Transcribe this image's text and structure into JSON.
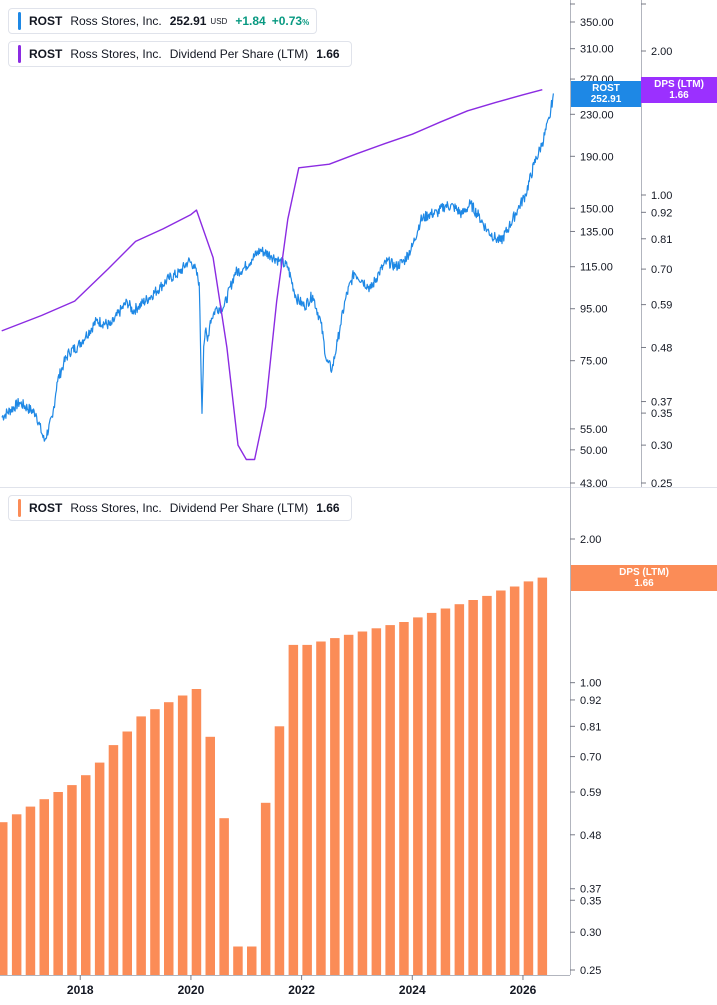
{
  "header": {
    "price_legend": {
      "symbol": "ROST",
      "name": "Ross Stores, Inc.",
      "value": "252.91",
      "currency": "USD",
      "change": "+1.84",
      "change_pct": "+0.73",
      "pct_sign": "%"
    },
    "dps_legend_top": {
      "symbol": "ROST",
      "name": "Ross Stores, Inc.",
      "metric": "Dividend Per Share (LTM)",
      "value": "1.66"
    },
    "dps_legend_bottom": {
      "symbol": "ROST",
      "name": "Ross Stores, Inc.",
      "metric": "Dividend Per Share (LTM)",
      "value": "1.66"
    }
  },
  "tags": {
    "price": {
      "line1": "ROST",
      "line2": "252.91"
    },
    "dps_top": {
      "line1": "DPS (LTM)",
      "line2": "1.66"
    },
    "dps_bottom": {
      "line1": "DPS (LTM)",
      "line2": "1.66"
    }
  },
  "colors": {
    "price_line": "#1e88e5",
    "dps_line": "#8b2be2",
    "bars": "#fb8c57",
    "gain": "#089981"
  },
  "chart_data": [
    {
      "type": "line",
      "scale": "log",
      "series": [
        {
          "name": "Ross Stores, Inc.",
          "axis": "left",
          "x": [
            2016.58,
            2016.9,
            2017.2,
            2017.35,
            2017.5,
            2017.58,
            2017.7,
            2017.8,
            2017.95,
            2018.1,
            2018.3,
            2018.55,
            2018.75,
            2018.85,
            2018.95,
            2019.05,
            2019.25,
            2019.45,
            2019.6,
            2019.8,
            2019.95,
            2020.05,
            2020.15,
            2020.2,
            2020.23,
            2020.26,
            2020.3,
            2020.35,
            2020.45,
            2020.6,
            2020.8,
            2020.95,
            2021.1,
            2021.25,
            2021.45,
            2021.6,
            2021.75,
            2021.9,
            2022.05,
            2022.2,
            2022.35,
            2022.45,
            2022.55,
            2022.65,
            2022.7,
            2022.8,
            2022.95,
            2023.1,
            2023.25,
            2023.4,
            2023.55,
            2023.7,
            2023.85,
            2024.0,
            2024.15,
            2024.3,
            2024.45,
            2024.6,
            2024.75,
            2024.9,
            2025.05,
            2025.2,
            2025.35,
            2025.5,
            2025.6,
            2025.75,
            2025.9,
            2026.05,
            2026.2,
            2026.35,
            2026.48,
            2026.55
          ],
          "values": [
            58,
            62,
            59,
            52,
            58,
            68,
            74,
            78,
            80,
            84,
            90,
            88,
            95,
            98,
            94,
            96,
            100,
            105,
            109,
            112,
            118,
            116,
            107,
            59,
            80,
            86,
            82,
            90,
            95,
            96,
            112,
            114,
            119,
            124,
            121,
            118,
            115,
            100,
            96,
            101,
            89,
            75,
            72,
            82,
            88,
            100,
            112,
            108,
            104,
            112,
            118,
            115,
            118,
            126,
            142,
            146,
            147,
            152,
            151,
            146,
            153,
            145,
            136,
            131,
            129,
            138,
            149,
            160,
            183,
            202,
            226,
            252.91
          ]
        },
        {
          "name": "Dividend Per Share (LTM)",
          "axis": "right",
          "x": [
            2016.58,
            2017.3,
            2017.9,
            2018.5,
            2019.0,
            2019.5,
            2020.0,
            2020.1,
            2020.4,
            2020.65,
            2020.85,
            2021.0,
            2021.15,
            2021.35,
            2021.55,
            2021.75,
            2021.95,
            2022.5,
            2023.0,
            2023.5,
            2024.0,
            2024.5,
            2025.0,
            2025.5,
            2026.0,
            2026.35
          ],
          "values": [
            0.52,
            0.56,
            0.6,
            0.7,
            0.8,
            0.85,
            0.91,
            0.93,
            0.74,
            0.48,
            0.3,
            0.28,
            0.28,
            0.36,
            0.6,
            0.89,
            1.14,
            1.16,
            1.22,
            1.28,
            1.34,
            1.42,
            1.5,
            1.56,
            1.62,
            1.66
          ]
        }
      ],
      "yaxis_left": {
        "ticks": [
          350,
          310,
          270,
          230,
          190,
          150,
          135,
          115,
          95,
          75,
          55,
          50,
          43
        ],
        "labels": [
          "350.00",
          "310.00",
          "270.00",
          "230.00",
          "190.00",
          "150.00",
          "135.00",
          "115.00",
          "95.00",
          "75.00",
          "55.00",
          "50.00",
          "43.00"
        ],
        "range": [
          43,
          410
        ]
      },
      "yaxis_right": {
        "ticks": [
          2.0,
          1.0,
          0.92,
          0.81,
          0.7,
          0.59,
          0.48,
          0.37,
          0.35,
          0.3,
          0.25
        ],
        "labels": [
          "2.00",
          "1.00",
          "0.92",
          "0.81",
          "0.70",
          "0.59",
          "0.48",
          "0.37",
          "0.35",
          "0.30",
          "0.25"
        ],
        "range": [
          0.25,
          2.4
        ]
      }
    },
    {
      "type": "bar",
      "scale": "log",
      "series": [
        {
          "name": "Dividend Per Share (LTM)",
          "x": [
            2016.6,
            2016.85,
            2017.1,
            2017.35,
            2017.6,
            2017.85,
            2018.1,
            2018.35,
            2018.6,
            2018.85,
            2019.1,
            2019.35,
            2019.6,
            2019.85,
            2020.1,
            2020.35,
            2020.6,
            2020.85,
            2021.1,
            2021.35,
            2021.6,
            2021.85,
            2022.1,
            2022.35,
            2022.6,
            2022.85,
            2023.1,
            2023.35,
            2023.6,
            2023.85,
            2024.1,
            2024.35,
            2024.6,
            2024.85,
            2025.1,
            2025.35,
            2025.6,
            2025.85,
            2026.1,
            2026.35
          ],
          "values": [
            0.51,
            0.53,
            0.55,
            0.57,
            0.59,
            0.61,
            0.64,
            0.68,
            0.74,
            0.79,
            0.85,
            0.88,
            0.91,
            0.94,
            0.97,
            0.77,
            0.52,
            0.28,
            0.28,
            0.56,
            0.81,
            1.2,
            1.2,
            1.22,
            1.24,
            1.26,
            1.28,
            1.3,
            1.32,
            1.34,
            1.37,
            1.4,
            1.43,
            1.46,
            1.49,
            1.52,
            1.56,
            1.59,
            1.63,
            1.66
          ]
        }
      ],
      "yaxis_right": {
        "ticks": [
          2.0,
          1.0,
          0.92,
          0.81,
          0.7,
          0.59,
          0.48,
          0.37,
          0.35,
          0.3,
          0.25
        ],
        "labels": [
          "2.00",
          "1.00",
          "0.92",
          "0.81",
          "0.70",
          "0.59",
          "0.48",
          "0.37",
          "0.35",
          "0.30",
          "0.25"
        ],
        "range": [
          0.25,
          2.4
        ]
      },
      "xaxis": {
        "ticks": [
          2018,
          2020,
          2022,
          2024,
          2026
        ],
        "labels": [
          "2018",
          "2020",
          "2022",
          "2024",
          "2026"
        ],
        "range": [
          2016.55,
          2026.85
        ]
      }
    }
  ]
}
